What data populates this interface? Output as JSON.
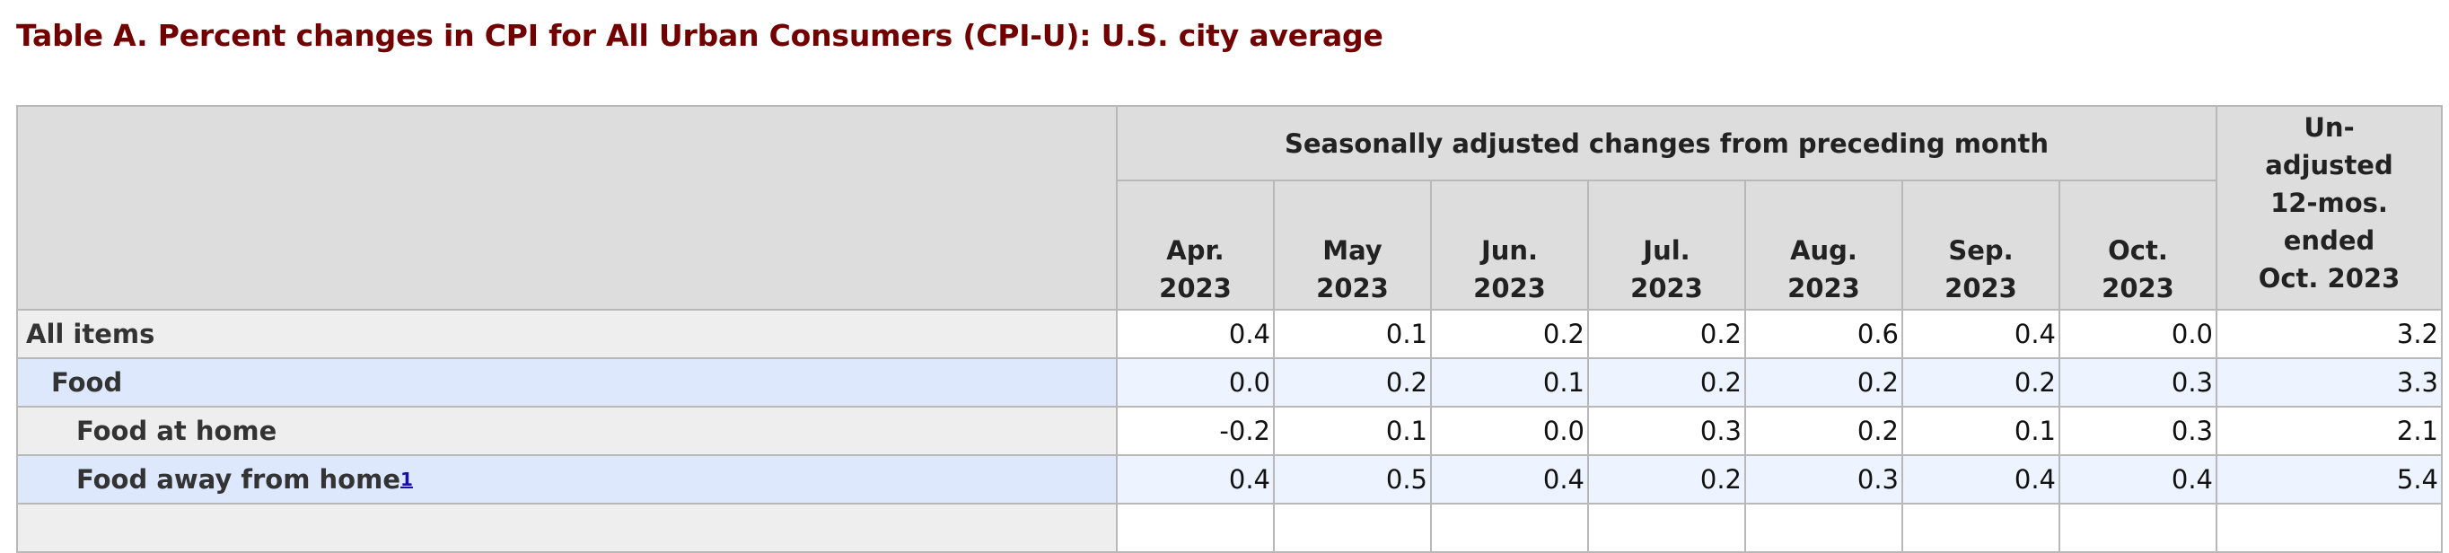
{
  "title": "Table A. Percent changes in CPI for All Urban Consumers (CPI-U): U.S. city average",
  "header": {
    "group_label": "Seasonally adjusted changes from preceding month",
    "months": [
      {
        "line1": "Apr.",
        "line2": "2023"
      },
      {
        "line1": "May",
        "line2": "2023"
      },
      {
        "line1": "Jun.",
        "line2": "2023"
      },
      {
        "line1": "Jul.",
        "line2": "2023"
      },
      {
        "line1": "Aug.",
        "line2": "2023"
      },
      {
        "line1": "Sep.",
        "line2": "2023"
      },
      {
        "line1": "Oct.",
        "line2": "2023"
      }
    ],
    "unadjusted_lines": [
      "Un-",
      "adjusted",
      "12-mos.",
      "ended",
      "Oct. 2023"
    ]
  },
  "rows": [
    {
      "label": "All items",
      "values": [
        "0.4",
        "0.1",
        "0.2",
        "0.2",
        "0.6",
        "0.4",
        "0.0",
        "3.2"
      ]
    },
    {
      "label": "Food",
      "values": [
        "0.0",
        "0.2",
        "0.1",
        "0.2",
        "0.2",
        "0.2",
        "0.3",
        "3.3"
      ]
    },
    {
      "label": "Food at home",
      "values": [
        "-0.2",
        "0.1",
        "0.0",
        "0.3",
        "0.2",
        "0.1",
        "0.3",
        "2.1"
      ]
    },
    {
      "label": "Food away from home",
      "footnote": "1",
      "values": [
        "0.4",
        "0.5",
        "0.4",
        "0.2",
        "0.3",
        "0.4",
        "0.4",
        "5.4"
      ]
    }
  ],
  "colors": {
    "title": "#730000",
    "header_bg": "#dddddd",
    "stub_gray": "#eeeeee",
    "stub_blue": "#dde8fd",
    "cell_blue": "#eef4ff",
    "border": "#b8b8b8",
    "link": "#1a0dab"
  }
}
